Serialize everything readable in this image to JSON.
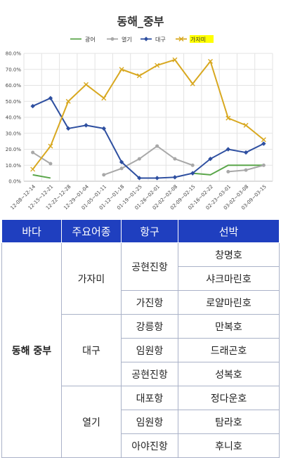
{
  "chart_data": {
    "type": "line",
    "title": "동해_중부",
    "categories": [
      "12-08~12-14",
      "12-15~12-21",
      "12-22~12-28",
      "12-29~01-04",
      "01-05~01-11",
      "01-12~01-18",
      "01-19~01-25",
      "01-26~02-01",
      "02-02~02-08",
      "02-09~02-15",
      "02-16~02-22",
      "02-23~03-01",
      "03-02~03-08",
      "03-09~03-15"
    ],
    "ylim": [
      0,
      80
    ],
    "yticks": [
      "0.0%",
      "10.0%",
      "20.0%",
      "30.0%",
      "40.0%",
      "50.0%",
      "60.0%",
      "70.0%",
      "80.0%"
    ],
    "grid": true,
    "legend_position": "top",
    "series": [
      {
        "name": "광어",
        "color": "#5aa64a",
        "values": [
          4,
          2,
          null,
          null,
          null,
          null,
          null,
          null,
          null,
          5,
          4,
          10,
          10,
          10
        ]
      },
      {
        "name": "열기",
        "color": "#a8a8a8",
        "values": [
          18,
          11,
          null,
          null,
          4,
          8,
          14,
          22,
          14,
          10,
          null,
          6,
          7,
          10
        ]
      },
      {
        "name": "대구",
        "color": "#2e4fa0",
        "values": [
          47,
          52,
          33,
          35,
          33,
          12,
          2,
          2,
          2.5,
          5,
          14,
          20,
          18,
          23.5
        ]
      },
      {
        "name": "가자미",
        "color": "#d8a820",
        "values": [
          7.5,
          22,
          50,
          60.5,
          52,
          70,
          66,
          72.5,
          76,
          61,
          75,
          39.5,
          35,
          26
        ],
        "highlight": true
      }
    ]
  },
  "table": {
    "headers": [
      "바다",
      "주요어종",
      "항구",
      "선박"
    ],
    "sea": "동해 중부",
    "groups": [
      {
        "species": "가자미",
        "ports": [
          {
            "name": "공현진항",
            "ships": [
              "창명호",
              "샤크마린호"
            ]
          },
          {
            "name": "가진항",
            "ships": [
              "로얄마린호"
            ]
          }
        ]
      },
      {
        "species": "대구",
        "ports": [
          {
            "name": "강릉항",
            "ships": [
              "만복호"
            ]
          },
          {
            "name": "임원항",
            "ships": [
              "드래곤호"
            ]
          },
          {
            "name": "공현진항",
            "ships": [
              "성복호"
            ]
          }
        ]
      },
      {
        "species": "열기",
        "ports": [
          {
            "name": "대포항",
            "ships": [
              "정다운호"
            ]
          },
          {
            "name": "임원항",
            "ships": [
              "탐라호"
            ]
          },
          {
            "name": "아야진항",
            "ships": [
              "후니호"
            ]
          }
        ]
      }
    ]
  }
}
